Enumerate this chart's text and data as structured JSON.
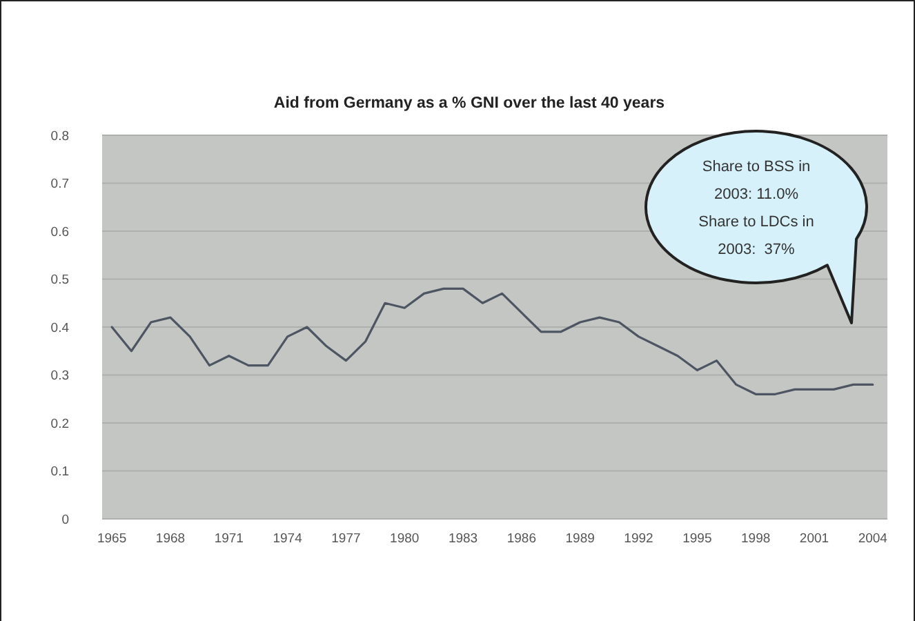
{
  "chart_data": {
    "type": "line",
    "title": "Aid from Germany as a % GNI over the last 40 years",
    "x": [
      1965,
      1966,
      1967,
      1968,
      1969,
      1970,
      1971,
      1972,
      1973,
      1974,
      1975,
      1976,
      1977,
      1978,
      1979,
      1980,
      1981,
      1982,
      1983,
      1984,
      1985,
      1986,
      1987,
      1988,
      1989,
      1990,
      1991,
      1992,
      1993,
      1994,
      1995,
      1996,
      1997,
      1998,
      1999,
      2000,
      2001,
      2002,
      2003,
      2004
    ],
    "values": [
      0.4,
      0.35,
      0.41,
      0.42,
      0.38,
      0.32,
      0.34,
      0.32,
      0.32,
      0.38,
      0.4,
      0.36,
      0.33,
      0.37,
      0.45,
      0.44,
      0.47,
      0.48,
      0.48,
      0.45,
      0.47,
      0.43,
      0.39,
      0.39,
      0.41,
      0.42,
      0.41,
      0.38,
      0.36,
      0.34,
      0.31,
      0.33,
      0.28,
      0.26,
      0.26,
      0.27,
      0.27,
      0.27,
      0.28,
      0.28
    ],
    "color": "#4d5563",
    "xlim": [
      1964.5,
      2004.75
    ],
    "xticks": [
      1965,
      1968,
      1971,
      1974,
      1977,
      1980,
      1983,
      1986,
      1989,
      1992,
      1995,
      1998,
      2001,
      2004
    ],
    "ylim": [
      0,
      0.8
    ],
    "yticks": [
      0,
      0.1,
      0.2,
      0.3,
      0.4,
      0.5,
      0.6,
      0.7,
      0.8
    ],
    "grid": "y",
    "annotations": [
      "Share to BSS in\n2003: 11.0%\nShare to LDCs in\n2003:  37%"
    ]
  }
}
